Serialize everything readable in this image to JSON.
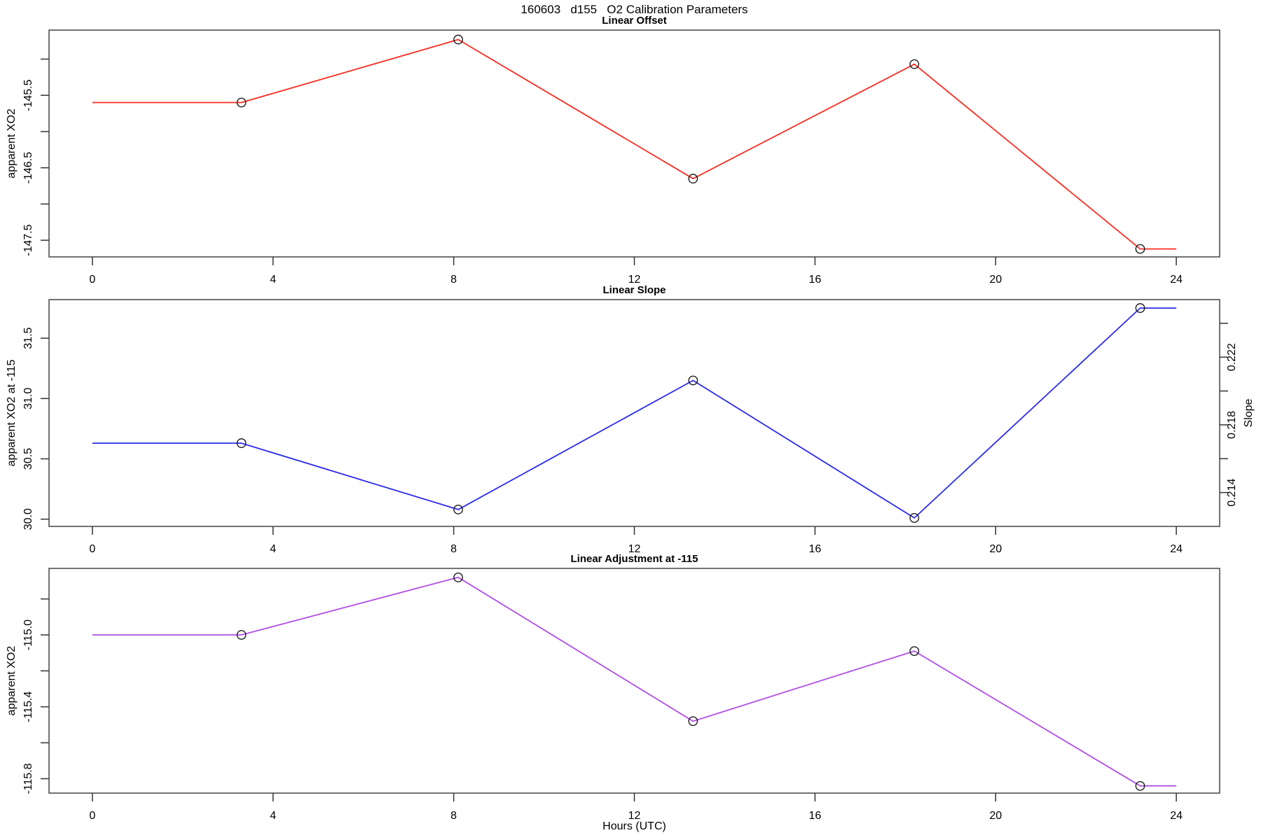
{
  "page_title": "160603   d155   O2 Calibration Parameters",
  "xlabel": "Hours (UTC)",
  "x_axis": {
    "lim": [
      -0.96,
      24.96
    ],
    "ticks": [
      0,
      4,
      8,
      12,
      16,
      20,
      24
    ],
    "tick_labels": [
      "0",
      "4",
      "8",
      "12",
      "16",
      "20",
      "24"
    ]
  },
  "chart_data": [
    {
      "type": "line",
      "title": "Linear Offset",
      "ylabel": "apparent XO2",
      "color": "#fa2b20",
      "marker": "open-circle",
      "x": [
        3.3,
        8.1,
        13.3,
        18.2,
        23.2
      ],
      "y": [
        -145.6,
        -144.73,
        -146.65,
        -145.07,
        -147.62
      ],
      "line_extends_to": [
        0,
        24
      ],
      "ylim": [
        -147.73,
        -144.6
      ],
      "yticks": [
        -145.0,
        -145.5,
        -146.0,
        -146.5,
        -147.0,
        -147.5
      ],
      "ytick_labels": [
        "",
        "-145.5",
        "",
        "-146.5",
        "",
        "-147.5"
      ]
    },
    {
      "type": "line",
      "title": "Linear Slope",
      "ylabel": "apparent XO2 at -115",
      "ylabel_right": "Slope",
      "color": "#2a2aee",
      "marker": "open-circle",
      "x": [
        3.3,
        8.1,
        13.3,
        18.2,
        23.2
      ],
      "y": [
        30.63,
        30.08,
        31.15,
        30.01,
        31.75
      ],
      "line_extends_to": [
        0,
        24
      ],
      "ylim": [
        29.94,
        31.82
      ],
      "yticks": [
        30.0,
        30.5,
        31.0,
        31.5
      ],
      "ytick_labels": [
        "30.0",
        "30.5",
        "31.0",
        "31.5"
      ],
      "ylim_right": [
        0.212,
        0.2254
      ],
      "yticks_right": [
        0.214,
        0.216,
        0.218,
        0.22,
        0.222,
        0.224
      ],
      "ytick_labels_right": [
        "0.214",
        "",
        "0.218",
        "",
        "0.222",
        ""
      ]
    },
    {
      "type": "line",
      "title": "Linear Adjustment at -115",
      "ylabel": "apparent XO2",
      "color": "#b14fe6",
      "marker": "open-circle",
      "x": [
        3.3,
        8.1,
        13.3,
        18.2,
        23.2
      ],
      "y": [
        -115.0,
        -114.68,
        -115.48,
        -115.09,
        -115.84
      ],
      "line_extends_to": [
        0,
        24
      ],
      "ylim": [
        -115.88,
        -114.63
      ],
      "yticks": [
        -114.8,
        -115.0,
        -115.2,
        -115.4,
        -115.6,
        -115.8
      ],
      "ytick_labels": [
        "",
        "-115.0",
        "",
        "-115.4",
        "",
        "-115.8"
      ]
    }
  ]
}
